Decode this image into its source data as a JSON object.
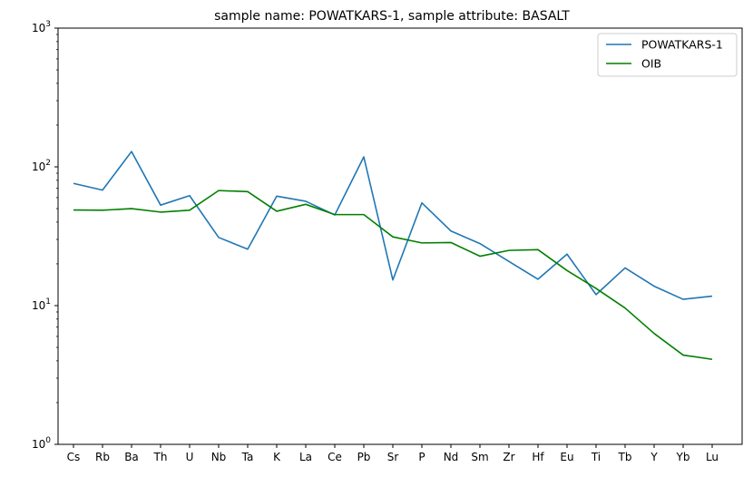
{
  "chart_data": {
    "type": "line",
    "title": "sample name: POWATKARS-1, sample attribute: BASALT",
    "xlabel": "",
    "ylabel": "",
    "yscale": "log",
    "ylim": [
      1,
      1000
    ],
    "y_tick_labels": [
      {
        "value": 1,
        "base": "10",
        "exp": "0"
      },
      {
        "value": 10,
        "base": "10",
        "exp": "1"
      },
      {
        "value": 100,
        "base": "10",
        "exp": "2"
      },
      {
        "value": 1000,
        "base": "10",
        "exp": "3"
      }
    ],
    "grid": false,
    "legend_position": "top-right",
    "categories": [
      "Cs",
      "Rb",
      "Ba",
      "Th",
      "U",
      "Nb",
      "Ta",
      "K",
      "La",
      "Ce",
      "Pb",
      "Sr",
      "P",
      "Nd",
      "Sm",
      "Zr",
      "Hf",
      "Eu",
      "Ti",
      "Tb",
      "Y",
      "Yb",
      "Lu"
    ],
    "series": [
      {
        "name": "POWATKARS-1",
        "color": "#1f77b4",
        "values": [
          76,
          68,
          129,
          53,
          62,
          31,
          25.5,
          61.5,
          56.5,
          45,
          118,
          15.3,
          55,
          34.5,
          28,
          20.8,
          15.5,
          23.5,
          12,
          18.7,
          13.8,
          11.1,
          11.7
        ]
      },
      {
        "name": "OIB",
        "color": "#008000",
        "values": [
          48.9,
          48.7,
          50,
          47.2,
          48.7,
          67.5,
          66.3,
          47.9,
          53.7,
          45.3,
          45.3,
          31.3,
          28.3,
          28.5,
          22.7,
          25,
          25.3,
          17.9,
          13.3,
          9.6,
          6.3,
          4.4,
          4.1
        ]
      }
    ]
  }
}
